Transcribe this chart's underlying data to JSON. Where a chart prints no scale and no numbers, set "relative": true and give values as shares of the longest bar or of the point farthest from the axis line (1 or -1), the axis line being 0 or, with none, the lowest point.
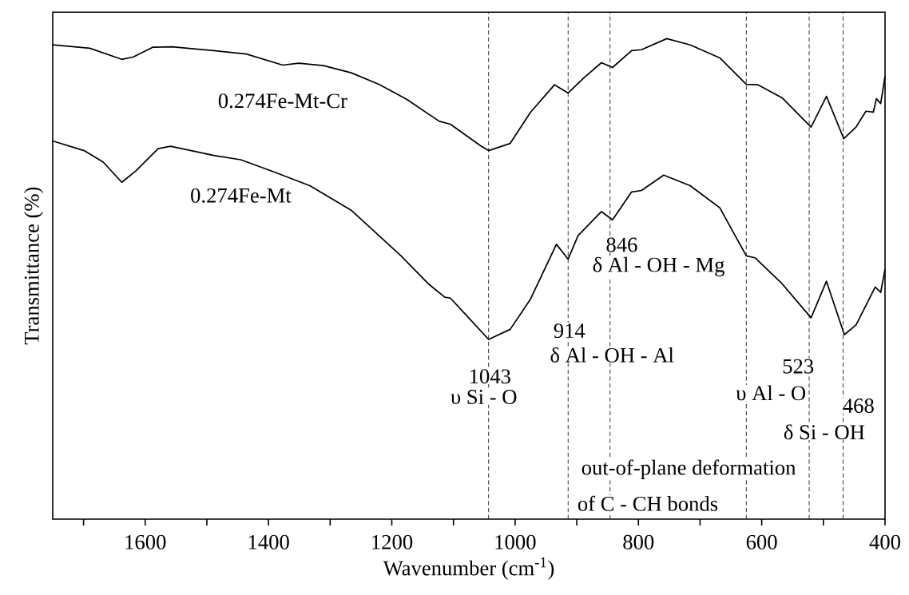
{
  "chart_data": {
    "type": "line",
    "relative": true,
    "xlabel": "Wavenumber (cm$^{-1}$)",
    "ylabel": "Transmittance (%)",
    "xlim": [
      1750,
      400
    ],
    "xticks": [
      {
        "value": 1700,
        "label": null
      },
      1600,
      {
        "value": 1500,
        "label": null
      },
      1400,
      {
        "value": 1300,
        "label": null
      },
      1200,
      {
        "value": 1100,
        "label": null
      },
      1000,
      {
        "value": 900,
        "label": null
      },
      800,
      {
        "value": 700,
        "label": null
      },
      600,
      {
        "value": 500,
        "label": null
      },
      400
    ],
    "tick_labels": "x",
    "marker": "none",
    "line_style": "solid",
    "series": [
      {
        "name": "0.274Fe-Mt-Cr",
        "color": "#000000",
        "x": [
          1750,
          1690,
          1638,
          1619,
          1588,
          1556,
          1489,
          1436,
          1377,
          1351,
          1311,
          1266,
          1221,
          1176,
          1123,
          1105,
          1056,
          1043,
          1008,
          975,
          936,
          914,
          888,
          860,
          842,
          811,
          795,
          754,
          716,
          668,
          625,
          606,
          567,
          520,
          495,
          467,
          447,
          431,
          419,
          414,
          407,
          400
        ],
        "values": [
          0.987,
          0.98,
          0.957,
          0.962,
          0.982,
          0.983,
          0.975,
          0.968,
          0.945,
          0.949,
          0.944,
          0.929,
          0.905,
          0.874,
          0.828,
          0.822,
          0.777,
          0.767,
          0.782,
          0.847,
          0.904,
          0.887,
          0.919,
          0.95,
          0.94,
          0.975,
          0.977,
          1.0,
          0.987,
          0.96,
          0.905,
          0.904,
          0.877,
          0.816,
          0.88,
          0.792,
          0.816,
          0.849,
          0.847,
          0.875,
          0.865,
          0.922
        ]
      },
      {
        "name": "0.274Fe-Mt",
        "color": "#000000",
        "x": [
          1750,
          1699,
          1668,
          1638,
          1615,
          1579,
          1559,
          1489,
          1445,
          1392,
          1333,
          1266,
          1185,
          1141,
          1114,
          1105,
          1079,
          1043,
          1008,
          975,
          933,
          914,
          898,
          860,
          842,
          811,
          795,
          759,
          716,
          668,
          625,
          611,
          567,
          520,
          495,
          466,
          447,
          429,
          416,
          407,
          400
        ],
        "values": [
          0.787,
          0.767,
          0.743,
          0.701,
          0.725,
          0.771,
          0.776,
          0.757,
          0.748,
          0.723,
          0.694,
          0.643,
          0.548,
          0.49,
          0.462,
          0.46,
          0.424,
          0.374,
          0.395,
          0.458,
          0.572,
          0.541,
          0.59,
          0.64,
          0.623,
          0.681,
          0.684,
          0.716,
          0.694,
          0.648,
          0.548,
          0.544,
          0.49,
          0.419,
          0.495,
          0.384,
          0.404,
          0.45,
          0.483,
          0.472,
          0.52
        ]
      }
    ],
    "ref_lines": [
      {
        "axis": "x",
        "value": 1043,
        "color": "#000000",
        "line_style": "dashed"
      },
      {
        "axis": "x",
        "value": 914,
        "color": "#000000",
        "line_style": "dashed"
      },
      {
        "axis": "x",
        "value": 846,
        "color": "#000000",
        "line_style": "dashed"
      },
      {
        "axis": "x",
        "value": 625,
        "color": "#000000",
        "line_style": "dashed"
      },
      {
        "axis": "x",
        "value": 523,
        "color": "#000000",
        "line_style": "dashed"
      },
      {
        "axis": "x",
        "value": 468,
        "color": "#000000",
        "line_style": "dashed"
      }
    ],
    "annotations": [
      {
        "text": "846",
        "x": 827,
        "y": 0.571
      },
      "δ Al - OH - Mg",
      {
        "text": "914",
        "x": 912,
        "y": 0.392
      },
      "δ Al - OH - Al",
      {
        "text": "1043",
        "x": 1041,
        "y": 0.297
      },
      "υ Si - O",
      {
        "text": "523",
        "x": 541,
        "y": 0.318
      },
      "υ Al - O",
      {
        "text": "468",
        "x": 443,
        "y": 0.236
      },
      "δ Si - OH",
      "out-of-plane deformation",
      "of C - CH bonds"
    ]
  }
}
